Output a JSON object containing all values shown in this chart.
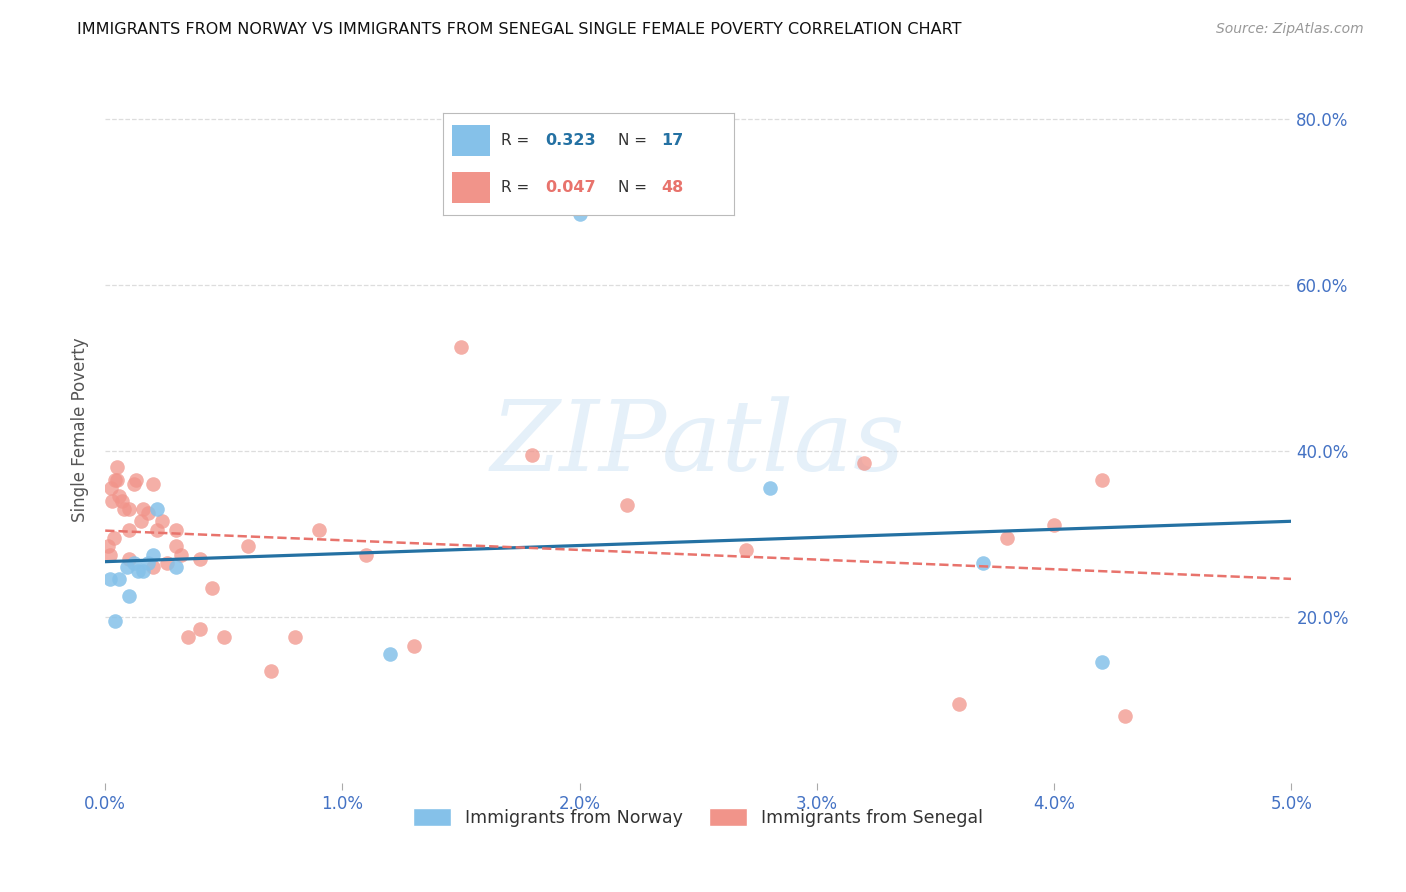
{
  "title": "IMMIGRANTS FROM NORWAY VS IMMIGRANTS FROM SENEGAL SINGLE FEMALE POVERTY CORRELATION CHART",
  "source": "Source: ZipAtlas.com",
  "ylabel": "Single Female Poverty",
  "xlim": [
    0.0,
    0.05
  ],
  "ylim": [
    0.0,
    0.85
  ],
  "xticks": [
    0.0,
    0.01,
    0.02,
    0.03,
    0.04,
    0.05
  ],
  "xtick_labels": [
    "0.0%",
    "1.0%",
    "2.0%",
    "3.0%",
    "4.0%",
    "5.0%"
  ],
  "ytick_labels": [
    "20.0%",
    "40.0%",
    "60.0%",
    "80.0%"
  ],
  "yticks": [
    0.2,
    0.4,
    0.6,
    0.8
  ],
  "norway_color": "#85C1E9",
  "senegal_color": "#F1948A",
  "norway_line_color": "#2471A3",
  "senegal_line_color": "#E8736C",
  "norway_R": "0.323",
  "norway_N": "17",
  "senegal_R": "0.047",
  "senegal_N": "48",
  "norway_x": [
    0.0002,
    0.0004,
    0.0006,
    0.0009,
    0.001,
    0.0012,
    0.0014,
    0.0016,
    0.0018,
    0.002,
    0.0022,
    0.003,
    0.012,
    0.02,
    0.028,
    0.037,
    0.042
  ],
  "norway_y": [
    0.245,
    0.195,
    0.245,
    0.26,
    0.225,
    0.265,
    0.255,
    0.255,
    0.265,
    0.275,
    0.33,
    0.26,
    0.155,
    0.685,
    0.355,
    0.265,
    0.145
  ],
  "senegal_x": [
    0.0001,
    0.0002,
    0.00025,
    0.0003,
    0.00035,
    0.0004,
    0.0005,
    0.0005,
    0.0006,
    0.0007,
    0.0008,
    0.001,
    0.001,
    0.001,
    0.0012,
    0.0013,
    0.0015,
    0.0016,
    0.0018,
    0.002,
    0.002,
    0.0022,
    0.0024,
    0.0026,
    0.003,
    0.003,
    0.0032,
    0.0035,
    0.004,
    0.004,
    0.0045,
    0.005,
    0.006,
    0.007,
    0.008,
    0.009,
    0.011,
    0.013,
    0.015,
    0.018,
    0.022,
    0.027,
    0.032,
    0.036,
    0.038,
    0.04,
    0.042,
    0.043
  ],
  "senegal_y": [
    0.285,
    0.275,
    0.355,
    0.34,
    0.295,
    0.365,
    0.365,
    0.38,
    0.345,
    0.34,
    0.33,
    0.305,
    0.27,
    0.33,
    0.36,
    0.365,
    0.315,
    0.33,
    0.325,
    0.26,
    0.36,
    0.305,
    0.315,
    0.265,
    0.285,
    0.305,
    0.275,
    0.175,
    0.27,
    0.185,
    0.235,
    0.175,
    0.285,
    0.135,
    0.175,
    0.305,
    0.275,
    0.165,
    0.525,
    0.395,
    0.335,
    0.28,
    0.385,
    0.095,
    0.295,
    0.31,
    0.365,
    0.08
  ],
  "watermark_text": "ZIPatlas",
  "background_color": "#ffffff",
  "grid_color": "#DDDDDD",
  "tick_color": "#4472C4",
  "label_color": "#555555"
}
